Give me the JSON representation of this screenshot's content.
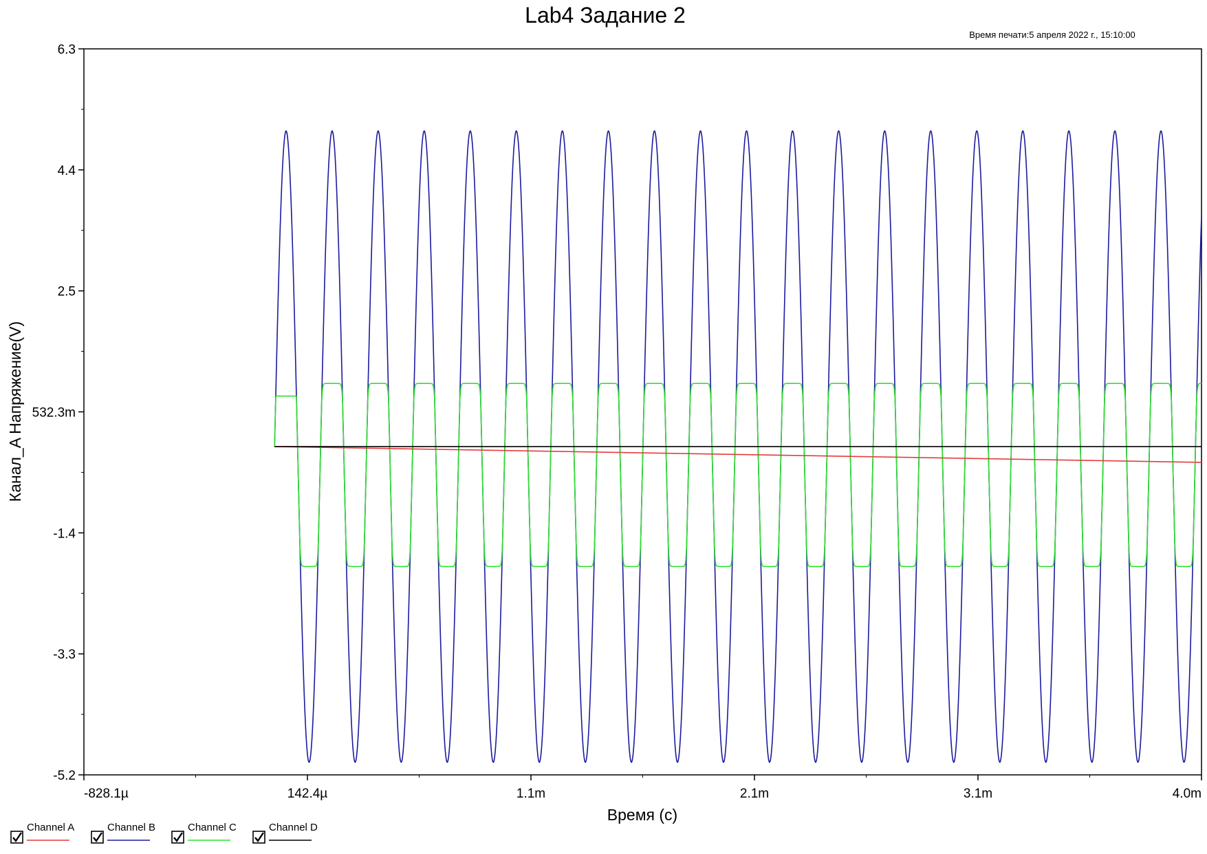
{
  "chart_data": {
    "type": "line",
    "title": "Lab4 Задание 2",
    "subtitle": "Время печати:5 апреля 2022 г., 15:10:00",
    "xlabel": "Время (с)",
    "ylabel": "Канал_A Напряжение(V)",
    "x_tick_labels": [
      "-828.1µ",
      "142.4µ",
      "1.1m",
      "2.1m",
      "3.1m",
      "4.0m"
    ],
    "y_tick_labels": [
      "6.3",
      "4.4",
      "2.5",
      "532.3m",
      "-1.4",
      "-3.3",
      "-5.2"
    ],
    "xlim": [
      -0.0008281,
      0.004026
    ],
    "ylim": [
      -5.2,
      6.3
    ],
    "grid": false,
    "legend_position": "bottom-left",
    "series": [
      {
        "name": "Channel A",
        "color": "#e23b3b",
        "signal": {
          "shape": "dc",
          "t_start": 0.0,
          "t_end": 0.004026,
          "v_start": 0.0,
          "v_end": -0.25
        }
      },
      {
        "name": "Channel B",
        "color": "#1a1a9e",
        "signal": {
          "shape": "sine",
          "t_start": 0.0,
          "t_end": 0.004026,
          "frequency_hz": 5000,
          "amplitude": 5.0,
          "offset": 0.0
        }
      },
      {
        "name": "Channel C",
        "color": "#2fe02f",
        "signal": {
          "shape": "clipped_sine",
          "t_start": 0.0,
          "t_end": 0.004026,
          "frequency_hz": 5000,
          "max": 1.0,
          "min": -1.9,
          "knee_high": 0.75,
          "knee_low": -1.5,
          "first_peak": 0.8
        }
      },
      {
        "name": "Channel D",
        "color": "#000000",
        "signal": {
          "shape": "dc",
          "t_start": 0.0,
          "t_end": 0.004026,
          "v_start": 0.0,
          "v_end": 0.0
        }
      }
    ]
  }
}
